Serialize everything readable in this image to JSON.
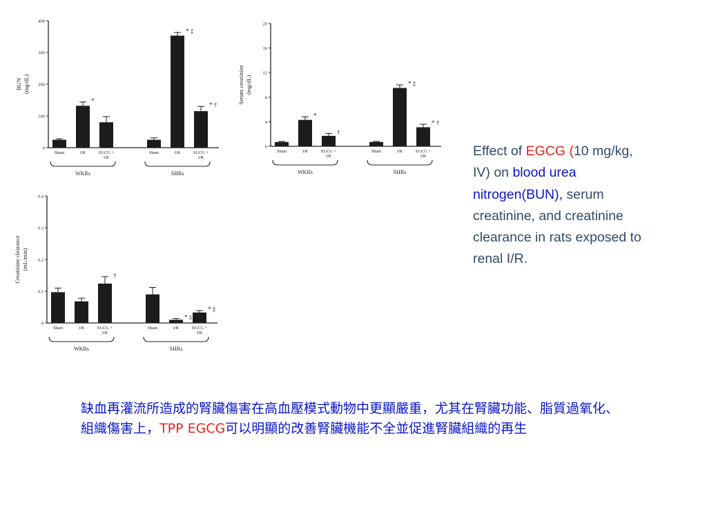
{
  "slide": {
    "caption": {
      "prefix": "Effect of ",
      "egcg": "EGCG (",
      "dose": "10 mg/kg, IV) on ",
      "targets": "blood urea nitrogen(BUN),",
      "rest": "serum creatinine, and creatinine   clearance in rats exposed to renal I/R."
    },
    "note": {
      "part1": "缺血再灌流所造成的腎臟傷害在高血壓模式動物中更顯嚴重，尤其在腎臟功能、脂質過氧化、組織傷害上，",
      "highlight": "TPP EGCG",
      "part2": "可以明顯的改善腎臟機能不全並促進腎臟組織的再生"
    }
  },
  "colors": {
    "bar": "#1c1c1c",
    "axis": "#222222",
    "caption_text": "#2e4a6b",
    "accent_red": "#e8231b",
    "accent_blue": "#0a16c8"
  },
  "chart_data": [
    {
      "type": "bar",
      "ylabel": "BUN\n(mg/dL)",
      "ylim": [
        0,
        400
      ],
      "yticks": [
        "0",
        "100",
        "200",
        "300",
        "400"
      ],
      "ytick_values": [
        0,
        100,
        200,
        300,
        400
      ],
      "categories": [
        "Sham",
        "I/R",
        "EGCG + I/R",
        "Sham",
        "I/R",
        "EGCG + I/R"
      ],
      "groups": [
        "WKRs",
        "SHRs"
      ],
      "values": [
        25,
        132,
        80,
        25,
        353,
        115
      ],
      "errors": [
        3,
        12,
        18,
        6,
        10,
        15
      ],
      "annotations": [
        "",
        "*",
        "",
        "",
        "* ‡",
        "* †"
      ],
      "grid": false
    },
    {
      "type": "bar",
      "ylabel": "Serum creatinine\n(mg/dL)",
      "ylim": [
        0,
        20
      ],
      "yticks": [
        "0",
        "4",
        "8",
        "12",
        "16",
        "20"
      ],
      "ytick_values": [
        0,
        4,
        8,
        12,
        16,
        20
      ],
      "categories": [
        "Sham",
        "I/R",
        "EGCG + I/R",
        "Sham",
        "I/R",
        "EGCG + I/R"
      ],
      "groups": [
        "WKRs",
        "SHRs"
      ],
      "values": [
        0.7,
        4.3,
        1.7,
        0.7,
        9.5,
        3.1
      ],
      "errors": [
        0.1,
        0.5,
        0.4,
        0.1,
        0.5,
        0.5
      ],
      "annotations": [
        "",
        "*",
        "†",
        "",
        "* ‡",
        "* †"
      ],
      "grid": false
    },
    {
      "type": "bar",
      "ylabel": "Creatinine clearance\n(mL/min)",
      "ylim": [
        0,
        0.4
      ],
      "yticks": [
        "0",
        "0.1",
        "0.2",
        "0.3",
        "0.4"
      ],
      "ytick_values": [
        0,
        0.1,
        0.2,
        0.3,
        0.4
      ],
      "categories": [
        "Sham",
        "I/R",
        "EGCG + I/R",
        "Sham",
        "I/R",
        "EGCG + I/R"
      ],
      "groups": [
        "WKRs",
        "SHRs"
      ],
      "values": [
        0.097,
        0.068,
        0.124,
        0.09,
        0.01,
        0.033
      ],
      "errors": [
        0.013,
        0.01,
        0.022,
        0.022,
        0.004,
        0.006
      ],
      "annotations": [
        "",
        "",
        "†",
        "",
        "* ‡",
        "* ‡"
      ],
      "grid": false
    }
  ]
}
